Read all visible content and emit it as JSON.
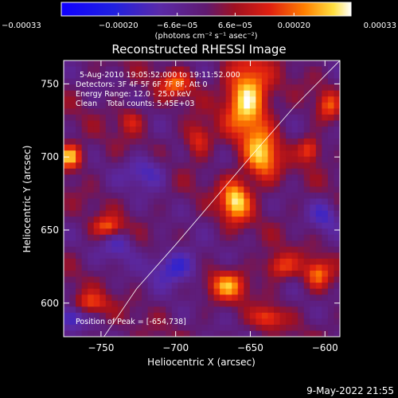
{
  "chart_data": {
    "type": "heatmap",
    "title": "Reconstructed RHESSI Image",
    "xlabel": "Heliocentric X (arcsec)",
    "ylabel": "Heliocentric Y (arcsec)",
    "xlim": [
      -775,
      -590
    ],
    "ylim": [
      577,
      766
    ],
    "xticks": [
      -750,
      -700,
      -650,
      -600
    ],
    "xtick_labels": [
      "−750",
      "−700",
      "−650",
      "−600"
    ],
    "yticks": [
      600,
      650,
      700,
      750
    ],
    "ytick_labels": [
      "600",
      "650",
      "700",
      "750"
    ],
    "colorbar": {
      "range": [
        -0.00033,
        0.00033
      ],
      "ticks": [
        -0.00033,
        -0.0002,
        -6.6e-05,
        6.6e-05,
        0.0002,
        0.00033
      ],
      "tick_labels": [
        "−0.00033",
        "−0.00020",
        "−6.6e−05",
        "6.6e−05",
        "0.00020",
        "0.00033"
      ],
      "units_label": "(photons cm⁻² s⁻¹ asec⁻²)"
    },
    "annotations": [
      "5-Aug-2010 19:05:52.000 to 19:11:52.000",
      "Detectors: 3F 4F 5F 6F 7F 8F, Att 0",
      "Energy Range: 12.0 - 25.0 keV",
      "Clean    Total counts: 5.45E+03"
    ],
    "peak_label": "Position of Peak = [-654,738]",
    "peak": [
      -654,
      738
    ],
    "limb_curve": [
      [
        -748,
        577
      ],
      [
        -726,
        610
      ],
      [
        -700,
        640
      ],
      [
        -675,
        670
      ],
      [
        -650,
        700
      ],
      [
        -620,
        735
      ],
      [
        -590,
        766
      ]
    ],
    "sources": [
      {
        "x": -652,
        "y": 740,
        "amp": 0.00033,
        "sx": 10,
        "sy": 18
      },
      {
        "x": -642,
        "y": 700,
        "amp": 0.00026,
        "sx": 8,
        "sy": 12
      },
      {
        "x": -660,
        "y": 670,
        "amp": 0.0003,
        "sx": 7,
        "sy": 10
      },
      {
        "x": -771,
        "y": 700,
        "amp": 0.00029,
        "sx": 6,
        "sy": 6
      },
      {
        "x": -745,
        "y": 652,
        "amp": 0.0002,
        "sx": 7,
        "sy": 5
      },
      {
        "x": -700,
        "y": 750,
        "amp": 0.00018,
        "sx": 8,
        "sy": 6
      },
      {
        "x": -685,
        "y": 712,
        "amp": 0.00017,
        "sx": 6,
        "sy": 8
      },
      {
        "x": -610,
        "y": 705,
        "amp": 0.00019,
        "sx": 5,
        "sy": 6
      },
      {
        "x": -598,
        "y": 735,
        "amp": 0.00016,
        "sx": 5,
        "sy": 7
      },
      {
        "x": -665,
        "y": 612,
        "amp": 0.00022,
        "sx": 9,
        "sy": 7
      },
      {
        "x": -630,
        "y": 625,
        "amp": 0.00018,
        "sx": 8,
        "sy": 6
      },
      {
        "x": -605,
        "y": 620,
        "amp": 0.0002,
        "sx": 6,
        "sy": 7
      },
      {
        "x": -757,
        "y": 600,
        "amp": 0.00016,
        "sx": 8,
        "sy": 5
      },
      {
        "x": -730,
        "y": 725,
        "amp": 0.00013,
        "sx": 6,
        "sy": 6
      },
      {
        "x": -638,
        "y": 590,
        "amp": 0.00017,
        "sx": 7,
        "sy": 5
      },
      {
        "x": -720,
        "y": 690,
        "amp": -0.00015,
        "sx": 10,
        "sy": 8
      },
      {
        "x": -700,
        "y": 625,
        "amp": -0.00018,
        "sx": 12,
        "sy": 9
      },
      {
        "x": -738,
        "y": 640,
        "amp": -0.00012,
        "sx": 8,
        "sy": 8
      },
      {
        "x": -600,
        "y": 660,
        "amp": -0.00012,
        "sx": 7,
        "sy": 8
      },
      {
        "x": -770,
        "y": 590,
        "amp": -0.00016,
        "sx": 6,
        "sy": 6
      }
    ]
  },
  "footer_timestamp": "9-May-2022 21:55"
}
